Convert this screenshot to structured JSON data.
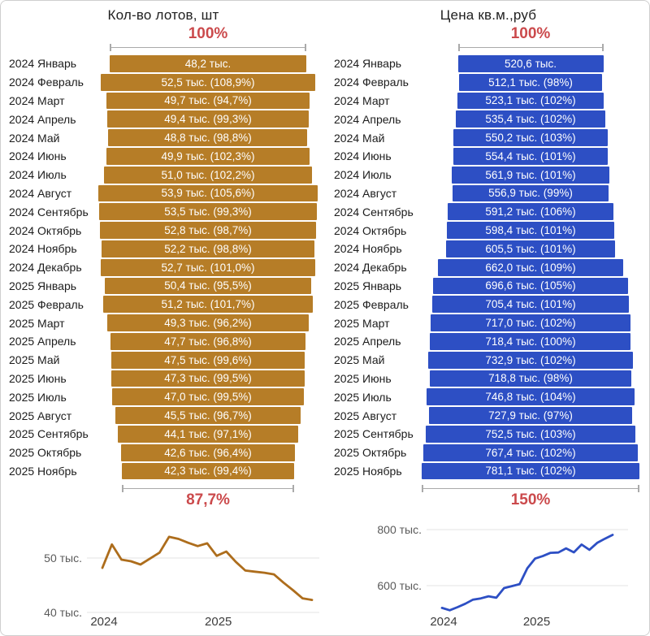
{
  "colors": {
    "percent_red": "#cb4a4c",
    "bracket_gray": "#aaaaaa",
    "grid_gray": "#e3e3e3",
    "bar_text": "#ffffff",
    "lots_bar": "#b67d27",
    "lots_line": "#ad6d1c",
    "price_bar": "#2d4fc4",
    "price_line": "#2d4fc4"
  },
  "chart_data": [
    {
      "type": "bar",
      "orientation": "horizontal-centered-funnel",
      "title": "Кол-во лотов, шт",
      "top_label": "100%",
      "bottom_label": "87,7%",
      "bar_color": "#b67d27",
      "line_color": "#ad6d1c",
      "categories": [
        "2024 Январь",
        "2024 Февраль",
        "2024 Март",
        "2024 Апрель",
        "2024 Май",
        "2024 Июнь",
        "2024 Июль",
        "2024 Август",
        "2024 Сентябрь",
        "2024 Октябрь",
        "2024 Ноябрь",
        "2024 Декабрь",
        "2025 Январь",
        "2025 Февраль",
        "2025 Март",
        "2025 Апрель",
        "2025 Май",
        "2025 Июнь",
        "2025 Июль",
        "2025 Август",
        "2025 Сентябрь",
        "2025 Октябрь",
        "2025 Ноябрь"
      ],
      "values": [
        48.2,
        52.5,
        49.7,
        49.4,
        48.8,
        49.9,
        51.0,
        53.9,
        53.5,
        52.8,
        52.2,
        52.7,
        50.4,
        51.2,
        49.3,
        47.7,
        47.5,
        47.3,
        47.0,
        45.5,
        44.1,
        42.6,
        42.3
      ],
      "bar_labels": [
        "48,2 тыс.",
        "52,5 тыс. (108,9%)",
        "49,7 тыс. (94,7%)",
        "49,4 тыс. (99,3%)",
        "48,8 тыс. (98,8%)",
        "49,9 тыс. (102,3%)",
        "51,0 тыс. (102,2%)",
        "53,9 тыс. (105,6%)",
        "53,5 тыс. (99,3%)",
        "52,8 тыс. (98,7%)",
        "52,2 тыс. (98,8%)",
        "52,7 тыс. (101,0%)",
        "50,4 тыс. (95,5%)",
        "51,2 тыс. (101,7%)",
        "49,3 тыс. (96,2%)",
        "47,7 тыс. (96,8%)",
        "47,5 тыс. (99,6%)",
        "47,3 тыс. (99,5%)",
        "47,0 тыс. (99,5%)",
        "45,5 тыс. (96,7%)",
        "44,1 тыс. (97,1%)",
        "42,6 тыс. (96,4%)",
        "42,3 тыс. (99,4%)"
      ],
      "line_chart": {
        "type": "line",
        "y_ticks": [
          {
            "label": "50 тыс.",
            "value": 50
          },
          {
            "label": "40 тыс.",
            "value": 40
          }
        ],
        "x_ticks": [
          {
            "label": "2024",
            "index": 0
          },
          {
            "label": "2025",
            "index": 12
          }
        ],
        "grid": true
      }
    },
    {
      "type": "bar",
      "orientation": "horizontal-centered-funnel",
      "title": "Цена кв.м.,руб",
      "top_label": "100%",
      "bottom_label": "150%",
      "bar_color": "#2d4fc4",
      "line_color": "#2d4fc4",
      "categories": [
        "2024 Январь",
        "2024 Февраль",
        "2024 Март",
        "2024 Апрель",
        "2024 Май",
        "2024 Июнь",
        "2024 Июль",
        "2024 Август",
        "2024 Сентябрь",
        "2024 Октябрь",
        "2024 Ноябрь",
        "2024 Декабрь",
        "2025 Январь",
        "2025 Февраль",
        "2025 Март",
        "2025 Апрель",
        "2025 Май",
        "2025 Июнь",
        "2025 Июль",
        "2025 Август",
        "2025 Сентябрь",
        "2025 Октябрь",
        "2025 Ноябрь"
      ],
      "values": [
        520.6,
        512.1,
        523.1,
        535.4,
        550.2,
        554.4,
        561.9,
        556.9,
        591.2,
        598.4,
        605.5,
        662.0,
        696.6,
        705.4,
        717.0,
        718.4,
        732.9,
        718.8,
        746.8,
        727.9,
        752.5,
        767.4,
        781.1
      ],
      "bar_labels": [
        "520,6 тыс.",
        "512,1 тыс. (98%)",
        "523,1 тыс. (102%)",
        "535,4 тыс. (102%)",
        "550,2 тыс. (103%)",
        "554,4 тыс. (101%)",
        "561,9 тыс. (101%)",
        "556,9 тыс. (99%)",
        "591,2 тыс. (106%)",
        "598,4 тыс. (101%)",
        "605,5 тыс. (101%)",
        "662,0 тыс. (109%)",
        "696,6 тыс. (105%)",
        "705,4 тыс. (101%)",
        "717,0 тыс. (102%)",
        "718,4 тыс. (100%)",
        "732,9 тыс. (102%)",
        "718,8 тыс. (98%)",
        "746,8 тыс. (104%)",
        "727,9 тыс. (97%)",
        "752,5 тыс. (103%)",
        "767,4 тыс. (102%)",
        "781,1 тыс. (102%)"
      ],
      "line_chart": {
        "type": "line",
        "y_ticks": [
          {
            "label": "800 тыс.",
            "value": 800
          },
          {
            "label": "600 тыс.",
            "value": 600
          }
        ],
        "x_ticks": [
          {
            "label": "2024",
            "index": 0
          },
          {
            "label": "2025",
            "index": 12
          }
        ],
        "grid": true
      }
    }
  ]
}
